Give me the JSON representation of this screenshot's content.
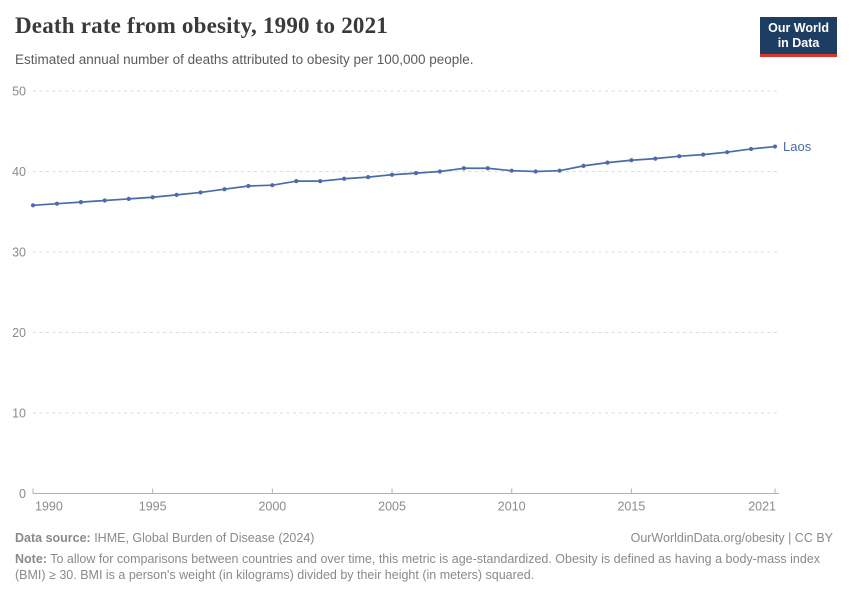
{
  "header": {
    "title": "Death rate from obesity, 1990 to 2021",
    "subtitle": "Estimated annual number of deaths attributed to obesity per 100,000 people.",
    "logo": {
      "line1": "Our World",
      "line2": "in Data"
    }
  },
  "chart_data": {
    "type": "line",
    "title": "Death rate from obesity, 1990 to 2021",
    "xlabel": "",
    "ylabel": "",
    "xlim": [
      1990,
      2021
    ],
    "ylim": [
      0,
      50
    ],
    "x_ticks": [
      1990,
      1995,
      2000,
      2005,
      2010,
      2015,
      2021
    ],
    "y_ticks": [
      0,
      10,
      20,
      30,
      40,
      50
    ],
    "grid": "horizontal-dashed",
    "legend": "line-end-label",
    "x": [
      1990,
      1991,
      1992,
      1993,
      1994,
      1995,
      1996,
      1997,
      1998,
      1999,
      2000,
      2001,
      2002,
      2003,
      2004,
      2005,
      2006,
      2007,
      2008,
      2009,
      2010,
      2011,
      2012,
      2013,
      2014,
      2015,
      2016,
      2017,
      2018,
      2019,
      2020,
      2021
    ],
    "series": [
      {
        "name": "Laos",
        "color": "#4C6BA8",
        "values": [
          35.8,
          36.0,
          36.2,
          36.4,
          36.6,
          36.8,
          37.1,
          37.4,
          37.8,
          38.2,
          38.3,
          38.8,
          38.8,
          39.1,
          39.3,
          39.6,
          39.8,
          40.0,
          40.4,
          40.4,
          40.1,
          40.0,
          40.1,
          40.7,
          41.1,
          41.4,
          41.6,
          41.9,
          42.1,
          42.4,
          42.8,
          43.1
        ]
      }
    ]
  },
  "footer": {
    "datasource_label": "Data source:",
    "datasource_text": " IHME, Global Burden of Disease (2024)",
    "rights": "OurWorldinData.org/obesity | CC BY",
    "note_label": "Note:",
    "note_text": " To allow for comparisons between countries and over time, this metric is age-standardized. Obesity is defined as having a body-mass index (BMI) ≥ 30. BMI is a person's weight (in kilograms) divided by their height (in meters) squared."
  },
  "colors": {
    "line": "#4C6BA8",
    "grid": "#dcdcdc",
    "axis": "#b3b3b3",
    "tick_label": "#8c8c8c",
    "logo_bg": "#1d3d63",
    "logo_accent": "#d8352f"
  }
}
